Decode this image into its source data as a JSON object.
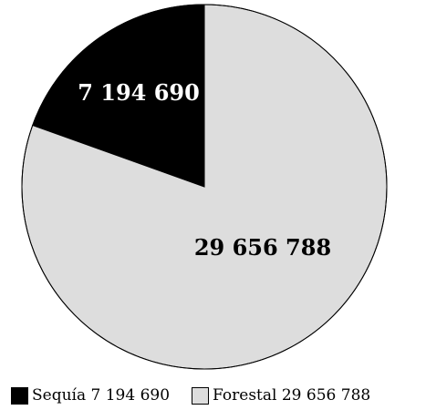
{
  "chart_data": {
    "type": "pie",
    "title": "",
    "slices": [
      {
        "label": "Sequía",
        "value": 7194690,
        "value_text": "7 194 690",
        "color": "#000000"
      },
      {
        "label": "Forestal",
        "value": 29656788,
        "value_text": "29 656 788",
        "color": "#dddddd"
      }
    ],
    "legend": {
      "position": "bottom",
      "entries": [
        "Sequía 7 194 690",
        "Forestal 29 656 788"
      ]
    },
    "label_colors": [
      "#ffffff",
      "#000000"
    ]
  }
}
